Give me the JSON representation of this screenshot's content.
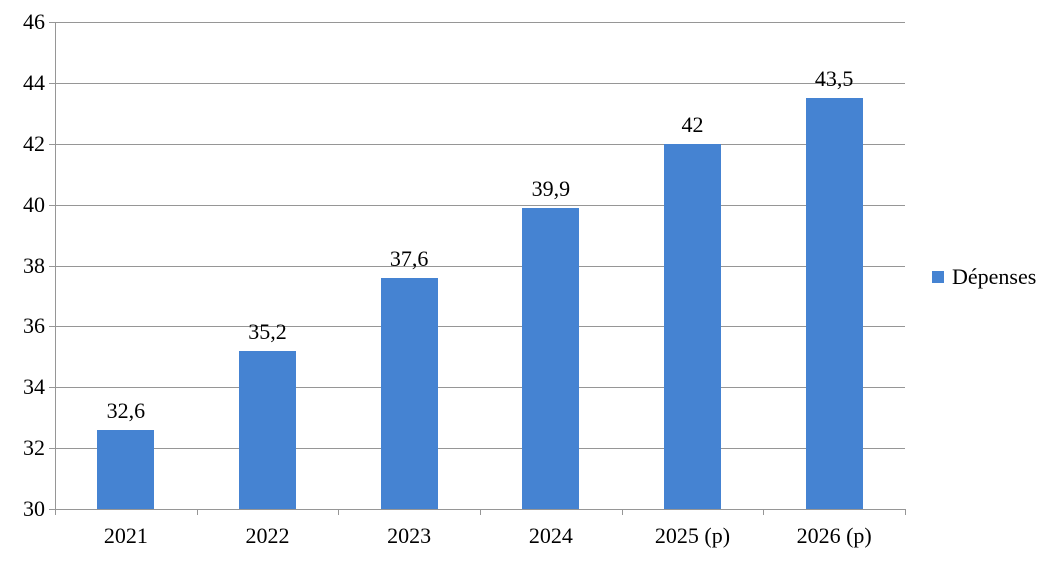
{
  "chart_data": {
    "type": "bar",
    "title": "",
    "categories": [
      "2021",
      "2022",
      "2023",
      "2024",
      "2025 (p)",
      "2026 (p)"
    ],
    "series": [
      {
        "name": "Dépenses",
        "values": [
          32.6,
          35.2,
          37.6,
          39.9,
          42,
          43.5
        ],
        "color": "#4583D2"
      }
    ],
    "value_labels": [
      "32,6",
      "35,2",
      "37,6",
      "39,9",
      "42",
      "43,5"
    ],
    "xlabel": "",
    "ylabel": "",
    "ylim": [
      30,
      46
    ],
    "y_ticks": [
      30,
      32,
      34,
      36,
      38,
      40,
      42,
      44,
      46
    ],
    "grid": true,
    "gridline_color": "#969696",
    "axis_color": "#969696",
    "text_color": "#000000",
    "legend_position": "right"
  },
  "legend": {
    "label": "Dépenses"
  }
}
